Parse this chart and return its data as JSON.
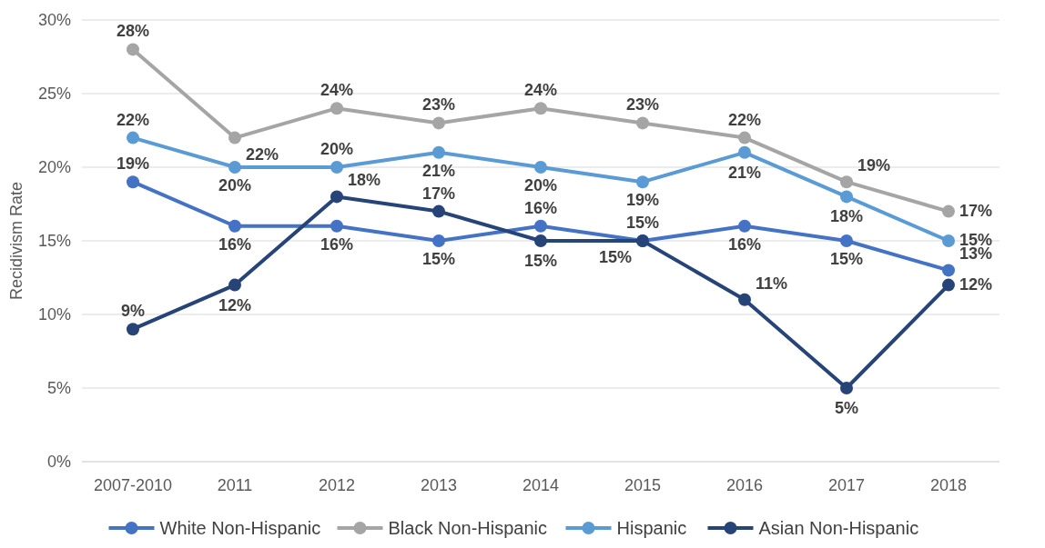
{
  "chart_data": {
    "type": "line",
    "ylabel": "Recidivism Rate",
    "categories": [
      "2007-2010",
      "2011",
      "2012",
      "2013",
      "2014",
      "2015",
      "2016",
      "2017",
      "2018"
    ],
    "series": [
      {
        "name": "White Non-Hispanic",
        "color": "#4472c4",
        "values": [
          19,
          16,
          16,
          15,
          16,
          15,
          16,
          15,
          13
        ],
        "value_labels": [
          "19%",
          "16%",
          "16%",
          "15%",
          "16%",
          "15%",
          "16%",
          "15%",
          "13%"
        ]
      },
      {
        "name": "Black Non-Hispanic",
        "color": "#a5a5a5",
        "values": [
          28,
          22,
          24,
          23,
          24,
          23,
          22,
          19,
          17
        ],
        "value_labels": [
          "28%",
          "22%",
          "24%",
          "23%",
          "24%",
          "23%",
          "22%",
          "19%",
          "17%"
        ]
      },
      {
        "name": "Hispanic",
        "color": "#5b9bd5",
        "values": [
          22,
          20,
          20,
          21,
          20,
          19,
          21,
          18,
          15
        ],
        "value_labels": [
          "22%",
          "20%",
          "20%",
          "21%",
          "20%",
          "19%",
          "21%",
          "18%",
          "15%"
        ]
      },
      {
        "name": "Asian Non-Hispanic",
        "color": "#264478",
        "values": [
          9,
          12,
          18,
          17,
          15,
          15,
          11,
          5,
          12
        ],
        "value_labels": [
          "9%",
          "12%",
          "18%",
          "17%",
          "15%",
          "15%",
          "11%",
          "5%",
          "12%"
        ]
      }
    ],
    "ylim": [
      0,
      30
    ],
    "yticks": [
      {
        "value": 0,
        "label": "0%"
      },
      {
        "value": 5,
        "label": "5%"
      },
      {
        "value": 10,
        "label": "10%"
      },
      {
        "value": 15,
        "label": "15%"
      },
      {
        "value": 20,
        "label": "20%"
      },
      {
        "value": 25,
        "label": "25%"
      },
      {
        "value": 30,
        "label": "30%"
      }
    ],
    "grid": "y",
    "legend": "bottom",
    "marker": "circle",
    "line_style": "solid"
  }
}
